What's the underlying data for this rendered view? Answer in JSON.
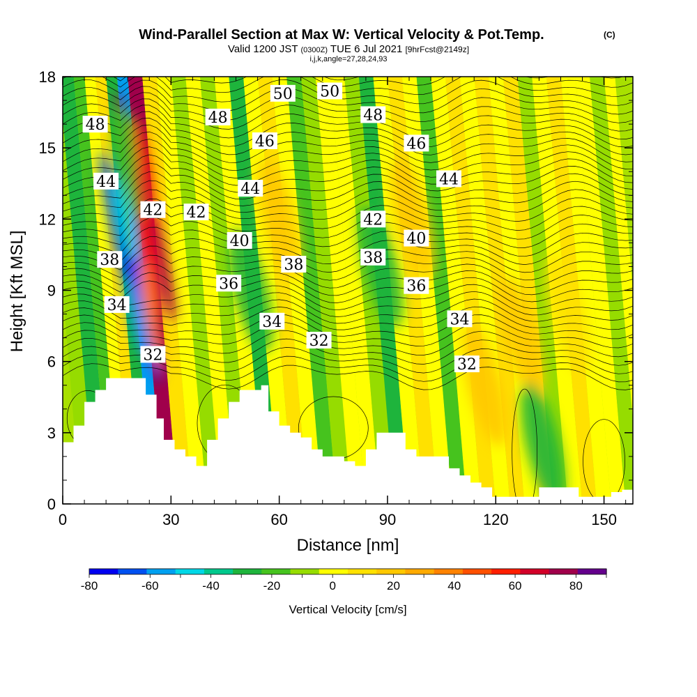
{
  "title": "Wind-Parallel Section at Max W: Vertical Velocity & Pot.Temp.",
  "title_mark": "(C)",
  "subtitle": {
    "valid": "Valid 1200 JST",
    "utc": "(0300Z)",
    "date": "TUE 6 Jul 2021",
    "fcst": "[9hrFcst@2149z]"
  },
  "subtitle2": "i,j,k,angle=27,28,24,93",
  "chart_data": {
    "type": "heatmap",
    "xlabel": "Distance [nm]",
    "ylabel": "Height [Kft MSL]",
    "xlim": [
      0,
      158
    ],
    "ylim": [
      0,
      18
    ],
    "x_ticks": [
      0,
      30,
      60,
      90,
      120,
      150
    ],
    "x_tick_labels": [
      "0",
      "30",
      "60",
      "90",
      "120",
      "150"
    ],
    "y_ticks": [
      0,
      3,
      6,
      9,
      12,
      15,
      18
    ],
    "y_tick_labels": [
      "0",
      "3",
      "6",
      "9",
      "12",
      "15",
      "18"
    ],
    "colorbar": {
      "label": "Vertical Velocity [cm/s]",
      "levels": [
        -80,
        -70,
        -60,
        -50,
        -40,
        -30,
        -20,
        -10,
        0,
        10,
        20,
        30,
        40,
        50,
        60,
        70,
        80,
        90
      ],
      "tick_values": [
        -80,
        -60,
        -40,
        -20,
        0,
        20,
        40,
        60,
        80
      ],
      "tick_labels": [
        "-80",
        "-60",
        "-40",
        "-20",
        "0",
        "20",
        "40",
        "60",
        "80"
      ],
      "colors": [
        "#0000f0",
        "#0050f0",
        "#00a0f0",
        "#00d7e6",
        "#00c88c",
        "#1eb43c",
        "#46c31e",
        "#96dc00",
        "#ffff00",
        "#ffe100",
        "#ffc800",
        "#ffaa00",
        "#ff8200",
        "#ff5000",
        "#ff1e00",
        "#d20028",
        "#a0004b",
        "#64008c"
      ]
    },
    "w_features": [
      {
        "x": 23,
        "y": 12.5,
        "w": 85,
        "note": "updraft core"
      },
      {
        "x": 18.5,
        "y": 10,
        "w": -65,
        "note": "downdraft core"
      },
      {
        "x": 60,
        "y": 12,
        "w": 20
      },
      {
        "x": 97,
        "y": 12,
        "w": 20
      },
      {
        "x": 117,
        "y": 5,
        "w": 25
      },
      {
        "x": 127,
        "y": 7,
        "w": 20
      },
      {
        "x": 140,
        "y": 8,
        "w": 15
      },
      {
        "x": 133,
        "y": 2.5,
        "w": -25
      },
      {
        "x": 52,
        "y": 9,
        "w": -25
      },
      {
        "x": 88,
        "y": 10,
        "w": -25
      },
      {
        "x": 20,
        "y": 14,
        "w": -20
      }
    ],
    "theta_contours": {
      "variable": "potential temperature",
      "units": "C",
      "interval": 1,
      "labels": [
        {
          "x": 9,
          "y": 16.0,
          "text": "48"
        },
        {
          "x": 43,
          "y": 16.3,
          "text": "48"
        },
        {
          "x": 86,
          "y": 16.4,
          "text": "48"
        },
        {
          "x": 61,
          "y": 17.3,
          "text": "50"
        },
        {
          "x": 74,
          "y": 17.4,
          "text": "50"
        },
        {
          "x": 56,
          "y": 15.3,
          "text": "46"
        },
        {
          "x": 98,
          "y": 15.2,
          "text": "46"
        },
        {
          "x": 12,
          "y": 13.6,
          "text": "44"
        },
        {
          "x": 52,
          "y": 13.3,
          "text": "44"
        },
        {
          "x": 107,
          "y": 13.7,
          "text": "44"
        },
        {
          "x": 25,
          "y": 12.4,
          "text": "42"
        },
        {
          "x": 37,
          "y": 12.3,
          "text": "42"
        },
        {
          "x": 86,
          "y": 12.0,
          "text": "42"
        },
        {
          "x": 49,
          "y": 11.1,
          "text": "40"
        },
        {
          "x": 98,
          "y": 11.2,
          "text": "40"
        },
        {
          "x": 13,
          "y": 10.3,
          "text": "38"
        },
        {
          "x": 64,
          "y": 10.1,
          "text": "38"
        },
        {
          "x": 86,
          "y": 10.4,
          "text": "38"
        },
        {
          "x": 46,
          "y": 9.3,
          "text": "36"
        },
        {
          "x": 98,
          "y": 9.2,
          "text": "36"
        },
        {
          "x": 15,
          "y": 8.4,
          "text": "34"
        },
        {
          "x": 58,
          "y": 7.7,
          "text": "34"
        },
        {
          "x": 110,
          "y": 7.8,
          "text": "34"
        },
        {
          "x": 25,
          "y": 6.3,
          "text": "32"
        },
        {
          "x": 71,
          "y": 6.9,
          "text": "32"
        },
        {
          "x": 112,
          "y": 5.9,
          "text": "32"
        }
      ]
    },
    "terrain_height_kft": [
      [
        0,
        2.6
      ],
      [
        3,
        3.3
      ],
      [
        6,
        4.3
      ],
      [
        9,
        4.8
      ],
      [
        12,
        5.3
      ],
      [
        22,
        5.3
      ],
      [
        23,
        4.6
      ],
      [
        26,
        3.6
      ],
      [
        28,
        2.7
      ],
      [
        31,
        2.3
      ],
      [
        34,
        2.0
      ],
      [
        37,
        1.6
      ],
      [
        40,
        2.7
      ],
      [
        43,
        3.6
      ],
      [
        46,
        4.3
      ],
      [
        49,
        4.8
      ],
      [
        55,
        5.0
      ],
      [
        57,
        3.9
      ],
      [
        60,
        3.3
      ],
      [
        63,
        3.0
      ],
      [
        66,
        2.8
      ],
      [
        69,
        2.3
      ],
      [
        72,
        2.0
      ],
      [
        75,
        2.0
      ],
      [
        78,
        1.8
      ],
      [
        81,
        1.6
      ],
      [
        84,
        2.3
      ],
      [
        87,
        3.0
      ],
      [
        93,
        3.0
      ],
      [
        95,
        2.3
      ],
      [
        98,
        2.0
      ],
      [
        104,
        2.0
      ],
      [
        107,
        1.5
      ],
      [
        110,
        1.2
      ],
      [
        113,
        0.9
      ],
      [
        116,
        0.7
      ],
      [
        119,
        0.3
      ],
      [
        123,
        0.3
      ],
      [
        132,
        0.7
      ],
      [
        140,
        0.7
      ],
      [
        143,
        0.3
      ],
      [
        149,
        0.3
      ],
      [
        152,
        0.5
      ],
      [
        155,
        0.6
      ],
      [
        158,
        0.9
      ]
    ]
  }
}
